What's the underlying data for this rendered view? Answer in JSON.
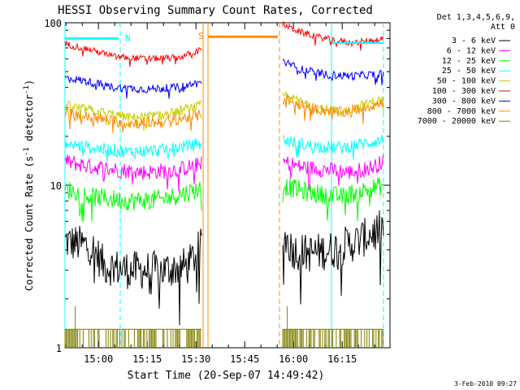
{
  "chart_data": {
    "type": "line",
    "title": "HESSI Observing Summary Count Rates, Corrected",
    "xlabel": "Start Time (20-Sep-07 14:49:42)",
    "ylabel_main": "Corrected Count Rate (s",
    "ylabel_sup1": "-1",
    "ylabel_mid": " detector",
    "ylabel_sup2": "-1",
    "ylabel_end": ")",
    "yscale": "log",
    "ylim": [
      1,
      100
    ],
    "xlim_minutes": [
      0,
      100
    ],
    "x_tick_labels": [
      "15:00",
      "15:15",
      "15:30",
      "15:45",
      "16:00",
      "16:15"
    ],
    "y_tick_labels": [
      "1",
      "10",
      "100"
    ],
    "footer_date": "3-Feb-2010 09:27",
    "legend": {
      "placement": "right",
      "header": [
        "Det 1,3,4,5,6,9,",
        "Att 0"
      ],
      "entries": [
        {
          "label": "3 - 6 keV",
          "color": "#000000"
        },
        {
          "label": "6 - 12 keV",
          "color": "#ff00ff"
        },
        {
          "label": "12 - 25 keV",
          "color": "#00ff00"
        },
        {
          "label": "25 - 50 keV",
          "color": "#00ffff"
        },
        {
          "label": "50 - 100 keV",
          "color": "#cccc00"
        },
        {
          "label": "100 - 300 keV",
          "color": "#ff0000"
        },
        {
          "label": "300 - 800 keV",
          "color": "#0000ff"
        },
        {
          "label": "800 - 7000 keV",
          "color": "#ff8c00"
        },
        {
          "label": "7000 - 20000 keV",
          "color": "#808000"
        }
      ]
    },
    "annotations": [
      {
        "label": "N",
        "color": "#00ffff",
        "x_start": 0,
        "x_end": 17,
        "y": 80
      },
      {
        "label": "S",
        "color": "#ff8c00",
        "x_start": 44,
        "x_end": 66,
        "y": 82
      }
    ],
    "markers": [
      {
        "x": 0,
        "color": "#00ffff",
        "style": "solid"
      },
      {
        "x": 17,
        "color": "#00ffff",
        "style": "dashed"
      },
      {
        "x": 42.5,
        "color": "#ff8c00",
        "style": "solid"
      },
      {
        "x": 44,
        "color": "#ff8c00",
        "style": "solid"
      },
      {
        "x": 66,
        "color": "#ff8c00",
        "style": "dashed"
      },
      {
        "x": 82,
        "color": "#00ffff",
        "style": "solid"
      },
      {
        "x": 98,
        "color": "#00ffff",
        "style": "dashed"
      }
    ],
    "segments": [
      [
        0,
        42
      ],
      [
        67,
        98
      ]
    ],
    "series": [
      {
        "name": "3 - 6 keV",
        "color": "#000000",
        "seg1": [
          [
            0,
            4.5
          ],
          [
            8,
            4.2
          ],
          [
            12,
            3.2
          ],
          [
            20,
            3
          ],
          [
            30,
            3
          ],
          [
            38,
            3.2
          ],
          [
            42,
            4.2
          ]
        ],
        "seg2": [
          [
            67,
            5
          ],
          [
            70,
            4
          ],
          [
            75,
            3.8
          ],
          [
            82,
            4
          ],
          [
            90,
            4.5
          ],
          [
            98,
            5.5
          ]
        ],
        "noise": 0.12
      },
      {
        "name": "6 - 12 keV",
        "color": "#ff00ff",
        "seg1": [
          [
            0,
            14
          ],
          [
            8,
            13
          ],
          [
            15,
            12.5
          ],
          [
            25,
            12
          ],
          [
            35,
            12.5
          ],
          [
            42,
            13.5
          ]
        ],
        "seg2": [
          [
            67,
            14
          ],
          [
            72,
            13
          ],
          [
            80,
            12.5
          ],
          [
            88,
            12
          ],
          [
            95,
            13
          ],
          [
            98,
            14
          ]
        ],
        "noise": 0.05
      },
      {
        "name": "12 - 25 keV",
        "color": "#00ff00",
        "seg1": [
          [
            0,
            9.5
          ],
          [
            8,
            8.5
          ],
          [
            20,
            8
          ],
          [
            30,
            8.2
          ],
          [
            42,
            9.5
          ]
        ],
        "seg2": [
          [
            67,
            10
          ],
          [
            75,
            9
          ],
          [
            85,
            8.5
          ],
          [
            98,
            10
          ]
        ],
        "noise": 0.06
      },
      {
        "name": "25 - 50 keV",
        "color": "#00ffff",
        "seg1": [
          [
            0,
            18
          ],
          [
            8,
            17
          ],
          [
            20,
            16
          ],
          [
            30,
            16.5
          ],
          [
            42,
            18
          ]
        ],
        "seg2": [
          [
            67,
            19
          ],
          [
            75,
            17.5
          ],
          [
            85,
            17
          ],
          [
            98,
            19
          ]
        ],
        "noise": 0.04
      },
      {
        "name": "50 - 100 keV",
        "color": "#cccc00",
        "seg1": [
          [
            0,
            31
          ],
          [
            8,
            29
          ],
          [
            20,
            26
          ],
          [
            30,
            27
          ],
          [
            42,
            31
          ]
        ],
        "seg2": [
          [
            67,
            36
          ],
          [
            75,
            31
          ],
          [
            85,
            28
          ],
          [
            98,
            34
          ]
        ],
        "noise": 0.03
      },
      {
        "name": "100 - 300 keV",
        "color": "#ff0000",
        "seg1": [
          [
            0,
            74
          ],
          [
            8,
            68
          ],
          [
            15,
            62
          ],
          [
            25,
            60
          ],
          [
            35,
            61
          ],
          [
            42,
            68
          ]
        ],
        "seg2": [
          [
            67,
            98
          ],
          [
            72,
            88
          ],
          [
            80,
            80
          ],
          [
            88,
            75
          ],
          [
            95,
            78
          ],
          [
            98,
            80
          ]
        ],
        "noise": 0.02
      },
      {
        "name": "300 - 800 keV",
        "color": "#0000ff",
        "seg1": [
          [
            0,
            46
          ],
          [
            8,
            43
          ],
          [
            15,
            40
          ],
          [
            25,
            39
          ],
          [
            35,
            40
          ],
          [
            42,
            43
          ]
        ],
        "seg2": [
          [
            67,
            58
          ],
          [
            72,
            52
          ],
          [
            80,
            48
          ],
          [
            88,
            47
          ],
          [
            95,
            48
          ],
          [
            98,
            49
          ]
        ],
        "noise": 0.025
      },
      {
        "name": "800 - 7000 keV",
        "color": "#ff8c00",
        "seg1": [
          [
            0,
            28
          ],
          [
            8,
            26
          ],
          [
            20,
            24
          ],
          [
            30,
            24.5
          ],
          [
            42,
            27
          ]
        ],
        "seg2": [
          [
            67,
            34
          ],
          [
            75,
            30
          ],
          [
            85,
            28
          ],
          [
            98,
            32
          ]
        ],
        "noise": 0.035
      },
      {
        "name": "7000 - 20000 keV",
        "color": "#808000",
        "seg1": [
          [
            0,
            1.3
          ],
          [
            42,
            1.3
          ]
        ],
        "seg2": [
          [
            67,
            1.3
          ],
          [
            98,
            1.3
          ]
        ],
        "noise": 0.0,
        "sparse": true
      }
    ]
  }
}
